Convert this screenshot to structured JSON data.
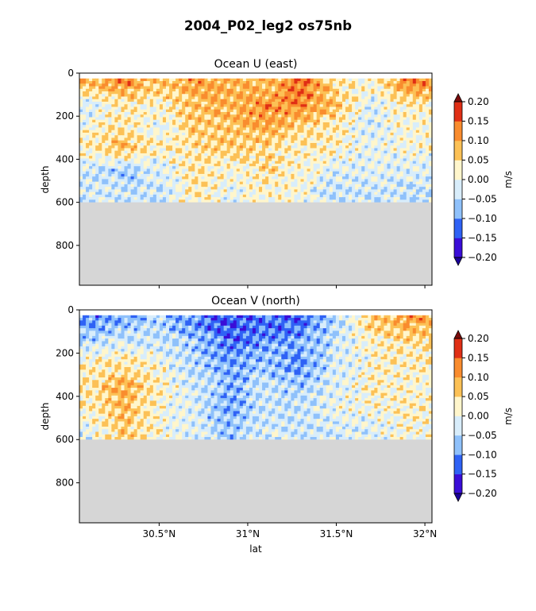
{
  "figure": {
    "suptitle": "2004_P02_leg2 os75nb",
    "xlabel": "lat",
    "colors": {
      "levels_bounds": [
        -0.2,
        -0.15,
        -0.1,
        -0.05,
        0.0,
        0.05,
        0.1,
        0.15,
        0.2
      ],
      "fill": [
        "#3a0dd8",
        "#2f62f5",
        "#8fc1fb",
        "#d8edfb",
        "#fff6cc",
        "#fcc156",
        "#f98c2e",
        "#e02f15"
      ],
      "under": "#1a0099",
      "over": "#7a0c0c",
      "land_mask": "#d6d6d6"
    }
  },
  "chart_data": [
    {
      "type": "heatmap",
      "title": "Ocean U (east)",
      "xlabel": "",
      "ylabel": "depth",
      "xlim": [
        30.05,
        32.04
      ],
      "ylim": [
        985,
        0
      ],
      "x_ticks": [
        30.5,
        31.0,
        31.5,
        32.0
      ],
      "x_tick_labels": [
        "30.5°N",
        "31°N",
        "31.5°N",
        "32°N"
      ],
      "y_ticks": [
        0,
        200,
        400,
        600,
        800
      ],
      "y_tick_labels": [
        "0",
        "200",
        "400",
        "600",
        "800"
      ],
      "colorbar_label": "m/s",
      "colorbar_ticks": [
        "0.20",
        "0.15",
        "0.10",
        "0.05",
        "0.00",
        "−0.05",
        "−0.10",
        "−0.15",
        "−0.20"
      ],
      "depth_range": [
        25,
        600
      ],
      "bottom_mask_depth": 600,
      "sample_rows": {
        "depths": [
          50,
          150,
          250,
          350,
          450,
          550
        ],
        "lats": [
          30.1,
          30.3,
          30.5,
          30.7,
          30.9,
          31.1,
          31.3,
          31.5,
          31.7,
          31.9
        ],
        "u": [
          [
            0.08,
            0.12,
            0.06,
            0.1,
            0.09,
            0.07,
            0.15,
            0.04,
            0.01,
            0.12
          ],
          [
            -0.02,
            0.03,
            0.02,
            0.08,
            0.09,
            0.11,
            0.12,
            0.07,
            -0.02,
            0.03
          ],
          [
            0.01,
            0.04,
            -0.01,
            0.06,
            0.07,
            0.1,
            0.05,
            0.03,
            -0.02,
            0.01
          ],
          [
            0.03,
            0.08,
            0.02,
            0.04,
            0.06,
            0.04,
            0.03,
            0.02,
            0.0,
            0.01
          ],
          [
            -0.03,
            -0.06,
            -0.02,
            0.04,
            0.01,
            0.05,
            0.02,
            -0.02,
            -0.01,
            -0.02
          ],
          [
            -0.02,
            -0.03,
            -0.04,
            0.03,
            -0.01,
            0.02,
            0.0,
            -0.03,
            -0.03,
            -0.04
          ]
        ]
      }
    },
    {
      "type": "heatmap",
      "title": "Ocean V (north)",
      "xlabel": "lat",
      "ylabel": "depth",
      "xlim": [
        30.05,
        32.04
      ],
      "ylim": [
        985,
        0
      ],
      "x_ticks": [
        30.5,
        31.0,
        31.5,
        32.0
      ],
      "x_tick_labels": [
        "30.5°N",
        "31°N",
        "31.5°N",
        "32°N"
      ],
      "y_ticks": [
        0,
        200,
        400,
        600,
        800
      ],
      "y_tick_labels": [
        "0",
        "200",
        "400",
        "600",
        "800"
      ],
      "colorbar_label": "m/s",
      "colorbar_ticks": [
        "0.20",
        "0.15",
        "0.10",
        "0.05",
        "0.00",
        "−0.05",
        "−0.10",
        "−0.15",
        "−0.20"
      ],
      "depth_range": [
        25,
        600
      ],
      "bottom_mask_depth": 600,
      "sample_rows": {
        "depths": [
          50,
          150,
          250,
          350,
          450,
          550
        ],
        "lats": [
          30.1,
          30.3,
          30.5,
          30.7,
          30.9,
          31.1,
          31.3,
          31.5,
          31.7,
          31.9
        ],
        "v": [
          [
            -0.1,
            -0.08,
            -0.05,
            -0.1,
            -0.14,
            -0.12,
            -0.13,
            -0.05,
            0.06,
            0.1
          ],
          [
            -0.04,
            -0.02,
            -0.03,
            -0.06,
            -0.12,
            -0.09,
            -0.08,
            -0.03,
            0.02,
            0.04
          ],
          [
            0.02,
            0.04,
            0.01,
            -0.05,
            -0.08,
            -0.06,
            -0.1,
            -0.02,
            0.01,
            0.03
          ],
          [
            0.04,
            0.09,
            0.02,
            -0.03,
            -0.07,
            -0.04,
            -0.06,
            -0.01,
            0.02,
            0.01
          ],
          [
            0.03,
            0.08,
            0.01,
            -0.02,
            -0.09,
            -0.03,
            -0.04,
            0.0,
            0.01,
            0.02
          ],
          [
            -0.01,
            0.06,
            0.01,
            -0.02,
            -0.06,
            -0.02,
            -0.03,
            -0.02,
            -0.01,
            0.01
          ]
        ]
      }
    }
  ]
}
